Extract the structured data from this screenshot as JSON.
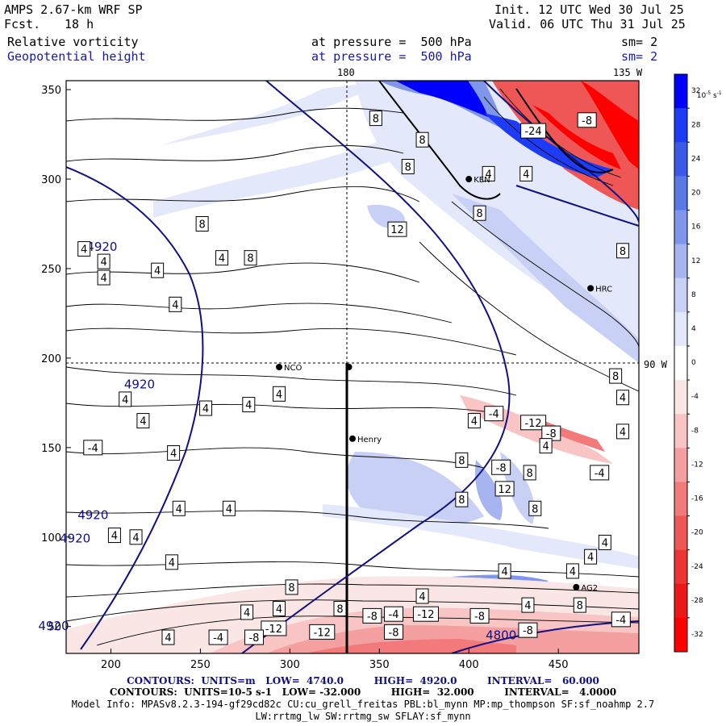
{
  "header": {
    "model": "AMPS 2.67-km WRF SP",
    "fcst_label": "Fcst.",
    "fcst_value": "18 h",
    "init": "Init. 12 UTC Wed 30 Jul 25",
    "valid": "Valid. 06 UTC Thu 31 Jul 25",
    "field1": "Relative vorticity",
    "field2": "Geopotential height",
    "pressure1": "at pressure =  500 hPa",
    "pressure2": "at pressure =  500 hPa",
    "sm1": "sm= 2",
    "sm2": "sm= 2"
  },
  "map": {
    "top_labels": [
      "180",
      "135 W"
    ],
    "right_label": "90 W",
    "x_ticks": [
      "200",
      "250",
      "300",
      "350",
      "400",
      "450"
    ],
    "y_ticks": [
      "350",
      "300",
      "250",
      "200",
      "150",
      "100",
      "50"
    ],
    "stations": [
      {
        "name": "KEN",
        "x": 400,
        "y": 300
      },
      {
        "name": "HRC",
        "x": 468,
        "y": 239
      },
      {
        "name": "NCO",
        "x": 294,
        "y": 195
      },
      {
        "name": "Henry",
        "x": 335,
        "y": 155
      },
      {
        "name": "AG2",
        "x": 460,
        "y": 72
      },
      {
        "name": "",
        "x": 333,
        "y": 195
      }
    ],
    "height_labels": [
      {
        "text": "4920",
        "x": 195,
        "y": 260
      },
      {
        "text": "4920",
        "x": 216,
        "y": 183
      },
      {
        "text": "4920",
        "x": 190,
        "y": 110
      },
      {
        "text": "4920",
        "x": 180,
        "y": 97
      },
      {
        "text": "4920",
        "x": 168,
        "y": 48
      },
      {
        "text": "4800",
        "x": 418,
        "y": 43
      }
    ],
    "vort_labels": [
      {
        "text": "8",
        "x": 348,
        "y": 334
      },
      {
        "text": "8",
        "x": 374,
        "y": 322
      },
      {
        "text": "8",
        "x": 366,
        "y": 307
      },
      {
        "text": "4",
        "x": 411,
        "y": 303
      },
      {
        "text": "4",
        "x": 432,
        "y": 303
      },
      {
        "text": "-24",
        "x": 436,
        "y": 327
      },
      {
        "text": "-8",
        "x": 466,
        "y": 333
      },
      {
        "text": "8",
        "x": 406,
        "y": 281
      },
      {
        "text": "12",
        "x": 360,
        "y": 272
      },
      {
        "text": "8",
        "x": 251,
        "y": 275
      },
      {
        "text": "4",
        "x": 185,
        "y": 261
      },
      {
        "text": "4",
        "x": 196,
        "y": 254
      },
      {
        "text": "4",
        "x": 196,
        "y": 245
      },
      {
        "text": "4",
        "x": 226,
        "y": 249
      },
      {
        "text": "4",
        "x": 236,
        "y": 230
      },
      {
        "text": "4",
        "x": 262,
        "y": 256
      },
      {
        "text": "8",
        "x": 278,
        "y": 256
      },
      {
        "text": "8",
        "x": 486,
        "y": 260
      },
      {
        "text": "8",
        "x": 482,
        "y": 190
      },
      {
        "text": "4",
        "x": 486,
        "y": 178
      },
      {
        "text": "4",
        "x": 486,
        "y": 159
      },
      {
        "text": "4",
        "x": 208,
        "y": 177
      },
      {
        "text": "4",
        "x": 253,
        "y": 172
      },
      {
        "text": "4",
        "x": 277,
        "y": 174
      },
      {
        "text": "4",
        "x": 294,
        "y": 180
      },
      {
        "text": "-4",
        "x": 414,
        "y": 169
      },
      {
        "text": "4",
        "x": 403,
        "y": 165
      },
      {
        "text": "-12",
        "x": 436,
        "y": 164
      },
      {
        "text": "-8",
        "x": 446,
        "y": 158
      },
      {
        "text": "4",
        "x": 443,
        "y": 151
      },
      {
        "text": "4",
        "x": 218,
        "y": 165
      },
      {
        "text": "4",
        "x": 235,
        "y": 147
      },
      {
        "text": "-4",
        "x": 190,
        "y": 150
      },
      {
        "text": "-4",
        "x": 473,
        "y": 136
      },
      {
        "text": "8",
        "x": 396,
        "y": 143
      },
      {
        "text": "-8",
        "x": 418,
        "y": 139
      },
      {
        "text": "8",
        "x": 434,
        "y": 136
      },
      {
        "text": "12",
        "x": 420,
        "y": 127
      },
      {
        "text": "8",
        "x": 396,
        "y": 121
      },
      {
        "text": "8",
        "x": 437,
        "y": 116
      },
      {
        "text": "4",
        "x": 238,
        "y": 116
      },
      {
        "text": "4",
        "x": 266,
        "y": 116
      },
      {
        "text": "4",
        "x": 202,
        "y": 101
      },
      {
        "text": "4",
        "x": 214,
        "y": 100
      },
      {
        "text": "4",
        "x": 234,
        "y": 86
      },
      {
        "text": "8",
        "x": 301,
        "y": 72
      },
      {
        "text": "4",
        "x": 374,
        "y": 67
      },
      {
        "text": "4",
        "x": 420,
        "y": 81
      },
      {
        "text": "4",
        "x": 458,
        "y": 81
      },
      {
        "text": "4",
        "x": 476,
        "y": 97
      },
      {
        "text": "4",
        "x": 468,
        "y": 89
      },
      {
        "text": "4",
        "x": 433,
        "y": 62
      },
      {
        "text": "8",
        "x": 462,
        "y": 62
      },
      {
        "text": "4",
        "x": 276,
        "y": 58
      },
      {
        "text": "4",
        "x": 294,
        "y": 60
      },
      {
        "text": "8",
        "x": 328,
        "y": 60
      },
      {
        "text": "-8",
        "x": 346,
        "y": 56
      },
      {
        "text": "-4",
        "x": 358,
        "y": 57
      },
      {
        "text": "-12",
        "x": 376,
        "y": 57
      },
      {
        "text": "-8",
        "x": 406,
        "y": 56
      },
      {
        "text": "-4",
        "x": 485,
        "y": 54
      },
      {
        "text": "-12",
        "x": 291,
        "y": 49
      },
      {
        "text": "-12",
        "x": 318,
        "y": 47
      },
      {
        "text": "-8",
        "x": 358,
        "y": 47
      },
      {
        "text": "-8",
        "x": 433,
        "y": 48
      },
      {
        "text": "4",
        "x": 232,
        "y": 44
      },
      {
        "text": "-4",
        "x": 260,
        "y": 44
      },
      {
        "text": "-8",
        "x": 280,
        "y": 44
      }
    ]
  },
  "colorbar": {
    "unit": "10",
    "unit_exp": "-5",
    "unit_suffix": "s",
    "unit_suffix_exp": "-1",
    "levels": [
      "32",
      "28",
      "24",
      "20",
      "16",
      "12",
      "8",
      "4",
      "0",
      "-4",
      "-8",
      "-12",
      "-16",
      "-20",
      "-24",
      "-28",
      "-32"
    ],
    "colors": [
      "#0000ff",
      "#1e3cf5",
      "#3a5ae8",
      "#5a78e6",
      "#7f96ea",
      "#a6b4f0",
      "#c8d0f6",
      "#e4e8fb",
      "#ffffff",
      "#fbe6e6",
      "#f8c4c4",
      "#f5a0a0",
      "#f27a7a",
      "#ef5656",
      "#ed3434",
      "#ea1818",
      "#ff0000"
    ]
  },
  "footer": {
    "line1": "CONTOURS:  UNITS=m   LOW=  4740.0         HIGH=  4920.0         INTERVAL=   60.000",
    "line2": "CONTOURS:  UNITS=10-5 s-1   LOW= -32.000         HIGH=  32.000         INTERVAL=   4.0000",
    "line3": "Model Info: MPASv8.2.3-194-gf29cd82c CU:cu_grell_freitas PBL:bl_mynn MP:mp_thompson SF:sf_noahmp 2.7",
    "line4": "LW:rrtmg_lw SW:rrtmg_sw SFLAY:sf_mynn"
  }
}
